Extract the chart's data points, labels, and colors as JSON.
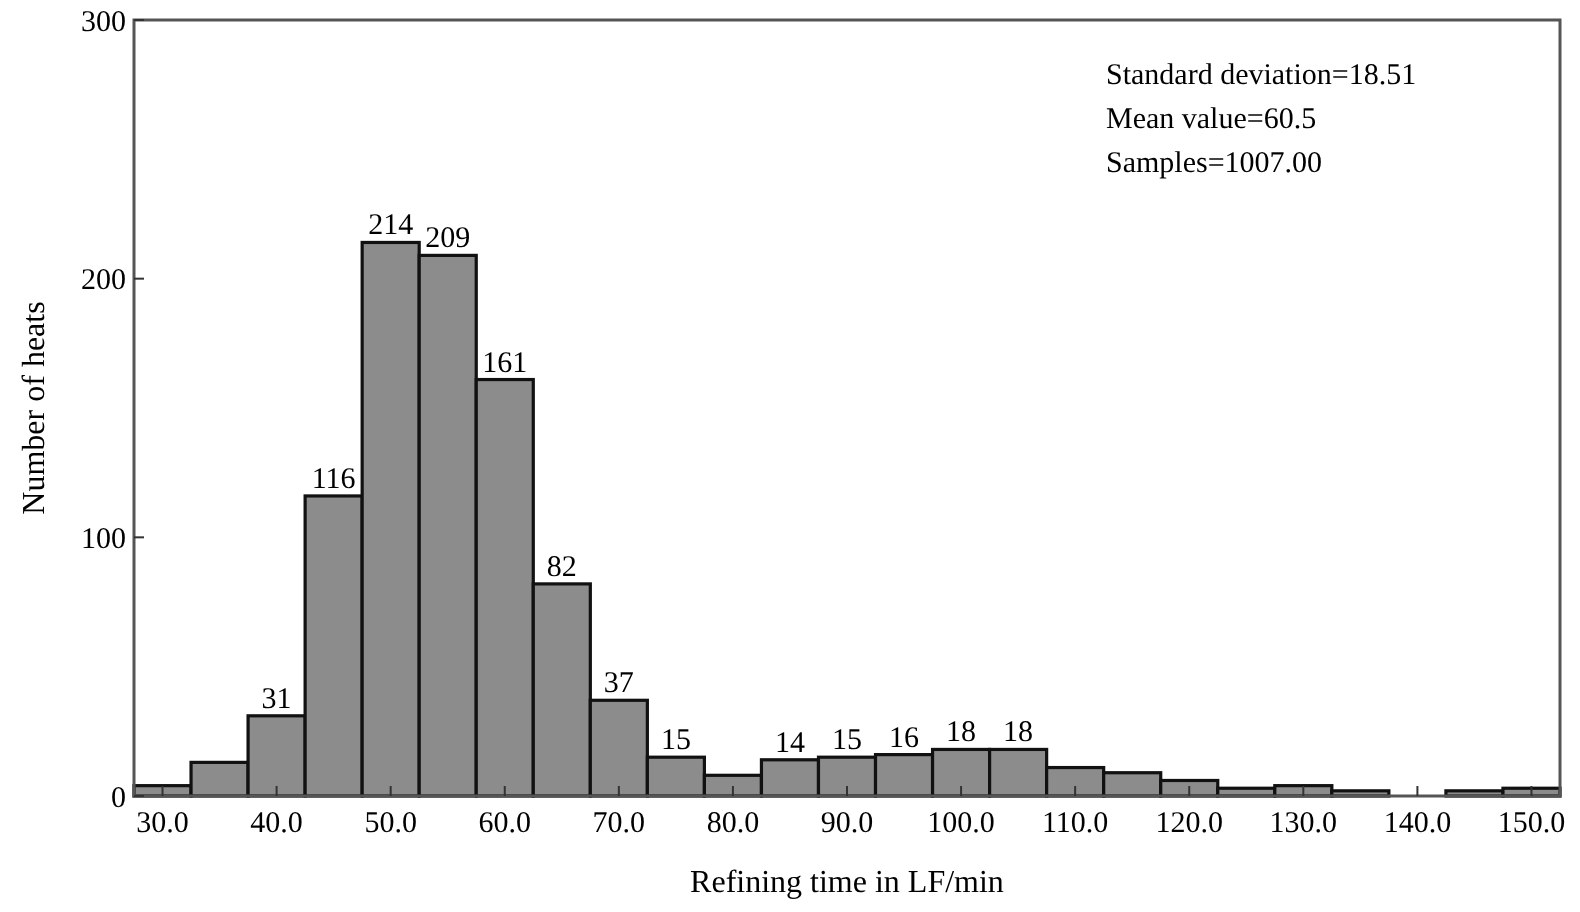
{
  "chart_data": {
    "type": "histogram",
    "xlabel": "Refining time in LF/min",
    "ylabel": "Number of heats",
    "bins": [
      27.5,
      32.5,
      37.5,
      42.5,
      47.5,
      52.5,
      57.5,
      62.5,
      67.5,
      72.5,
      77.5,
      82.5,
      87.5,
      92.5,
      97.5,
      102.5,
      107.5,
      112.5,
      117.5,
      122.5,
      127.5,
      132.5,
      137.5,
      142.5,
      147.5,
      152.5
    ],
    "values": [
      4,
      13,
      31,
      116,
      214,
      209,
      161,
      82,
      37,
      15,
      8,
      14,
      15,
      16,
      18,
      18,
      11,
      9,
      6,
      3,
      4,
      2,
      0,
      2,
      3
    ],
    "value_labels": [
      null,
      null,
      "31",
      "116",
      "214",
      "209",
      "161",
      "82",
      "37",
      "15",
      null,
      "14",
      "15",
      "16",
      "18",
      "18",
      null,
      null,
      null,
      null,
      null,
      null,
      null,
      null,
      null
    ],
    "color": "#8c8c8c",
    "xlim": [
      27.5,
      152.5
    ],
    "xticks": [
      {
        "value": 30,
        "label": "30.0"
      },
      {
        "value": 40,
        "label": "40.0"
      },
      {
        "value": 50,
        "label": "50.0"
      },
      {
        "value": 60,
        "label": "60.0"
      },
      {
        "value": 70,
        "label": "70.0"
      },
      {
        "value": 80,
        "label": "80.0"
      },
      {
        "value": 90,
        "label": "90.0"
      },
      {
        "value": 100,
        "label": "100.0"
      },
      {
        "value": 110,
        "label": "110.0"
      },
      {
        "value": 120,
        "label": "120.0"
      },
      {
        "value": 130,
        "label": "130.0"
      },
      {
        "value": 140,
        "label": "140.0"
      },
      {
        "value": 150,
        "label": "150.0"
      }
    ],
    "ylim": [
      0,
      300
    ],
    "yticks": [
      0,
      100,
      200,
      300
    ],
    "annotations": [
      "Standard deviation=18.51",
      "Mean value=60.5",
      "Samples=1007.00"
    ]
  }
}
